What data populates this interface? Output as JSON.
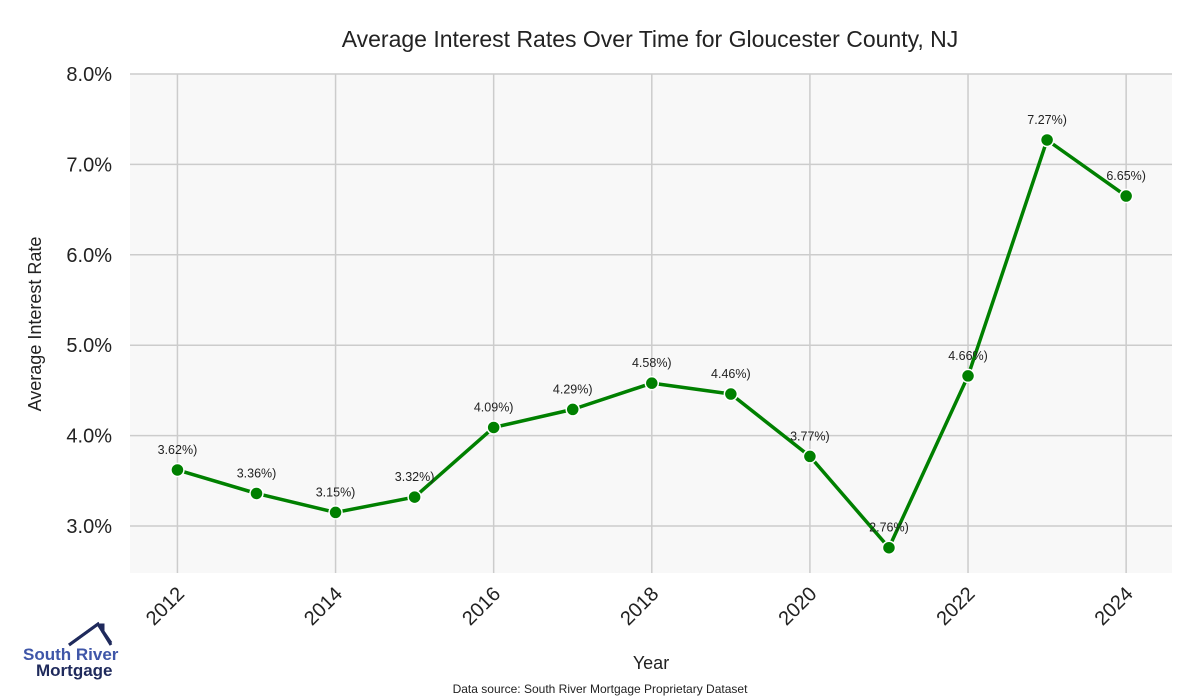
{
  "chart_data": {
    "type": "line",
    "title": "Average Interest Rates Over Time for Gloucester County, NJ",
    "xlabel": "Year",
    "ylabel": "Average Interest Rate",
    "x": [
      2012,
      2013,
      2014,
      2015,
      2016,
      2017,
      2018,
      2019,
      2020,
      2021,
      2022,
      2023,
      2024
    ],
    "values": [
      3.62,
      3.36,
      3.15,
      3.32,
      4.09,
      4.29,
      4.58,
      4.46,
      3.77,
      2.76,
      4.66,
      7.27,
      6.65
    ],
    "data_labels": [
      "3.62%)",
      "3.36%)",
      "3.15%)",
      "3.32%)",
      "4.09%)",
      "4.29%)",
      "4.58%)",
      "4.46%)",
      "3.77%)",
      "2.76%)",
      "4.66%)",
      "7.27%)",
      "6.65%)"
    ],
    "x_ticks": [
      "2012",
      "2014",
      "2016",
      "2018",
      "2020",
      "2022",
      "2024"
    ],
    "y_ticks": [
      "3.0%",
      "4.0%",
      "5.0%",
      "6.0%",
      "7.0%",
      "8.0%"
    ],
    "y_tick_values": [
      3,
      4,
      5,
      6,
      7,
      8
    ],
    "xlim": [
      2011.4,
      2024.58
    ],
    "ylim": [
      2.48,
      8.0
    ],
    "grid": true,
    "line_color": "#008000",
    "background": "#f8f8f8"
  },
  "source": "Data source: South River Mortgage Proprietary Dataset",
  "logo": {
    "line1": "South River",
    "line2": "Mortgage",
    "color1": "#3f56a8",
    "color2": "#1f2a5c"
  }
}
